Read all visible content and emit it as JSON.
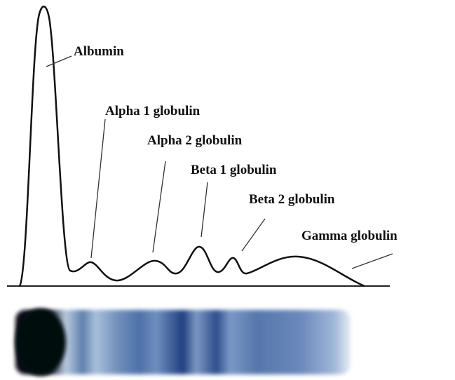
{
  "fractions": [
    {
      "label": "Albumin"
    },
    {
      "label": "Alpha 1 globulin"
    },
    {
      "label": "Alpha 2 globulin"
    },
    {
      "label": "Beta 1 globulin"
    },
    {
      "label": "Beta 2 globulin"
    },
    {
      "label": "Gamma globulin"
    }
  ]
}
